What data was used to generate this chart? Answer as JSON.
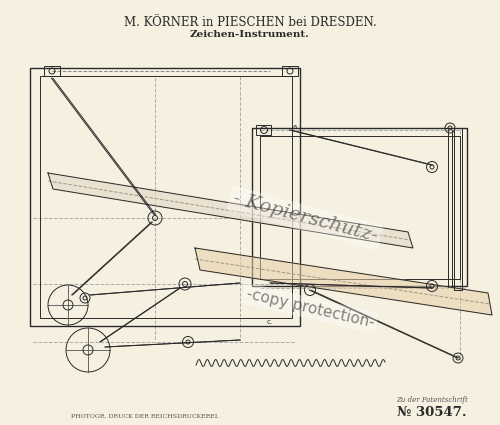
{
  "bg_color": "#f5f0e0",
  "title_line1": "M. KÖRNER in PIESCHEN bei DRESDEN.",
  "title_line2": "Zeichen-Instrument.",
  "footer_left": "PHOTOGR. DRUCK DER REICHSDRUCKEREI.",
  "footer_right_top": "Zu der Patentschrift",
  "footer_right_bottom": "№ 30547.",
  "line_color": "#2a2a2a",
  "watermark1": "- Kopierschutz-",
  "watermark2": "-copy protection-",
  "arm_color": "#e5dac8",
  "arm_color2": "#e8d0a8",
  "dashed_color": "#aaaaaa",
  "cross_color": "#666666",
  "gray888": "#888888"
}
